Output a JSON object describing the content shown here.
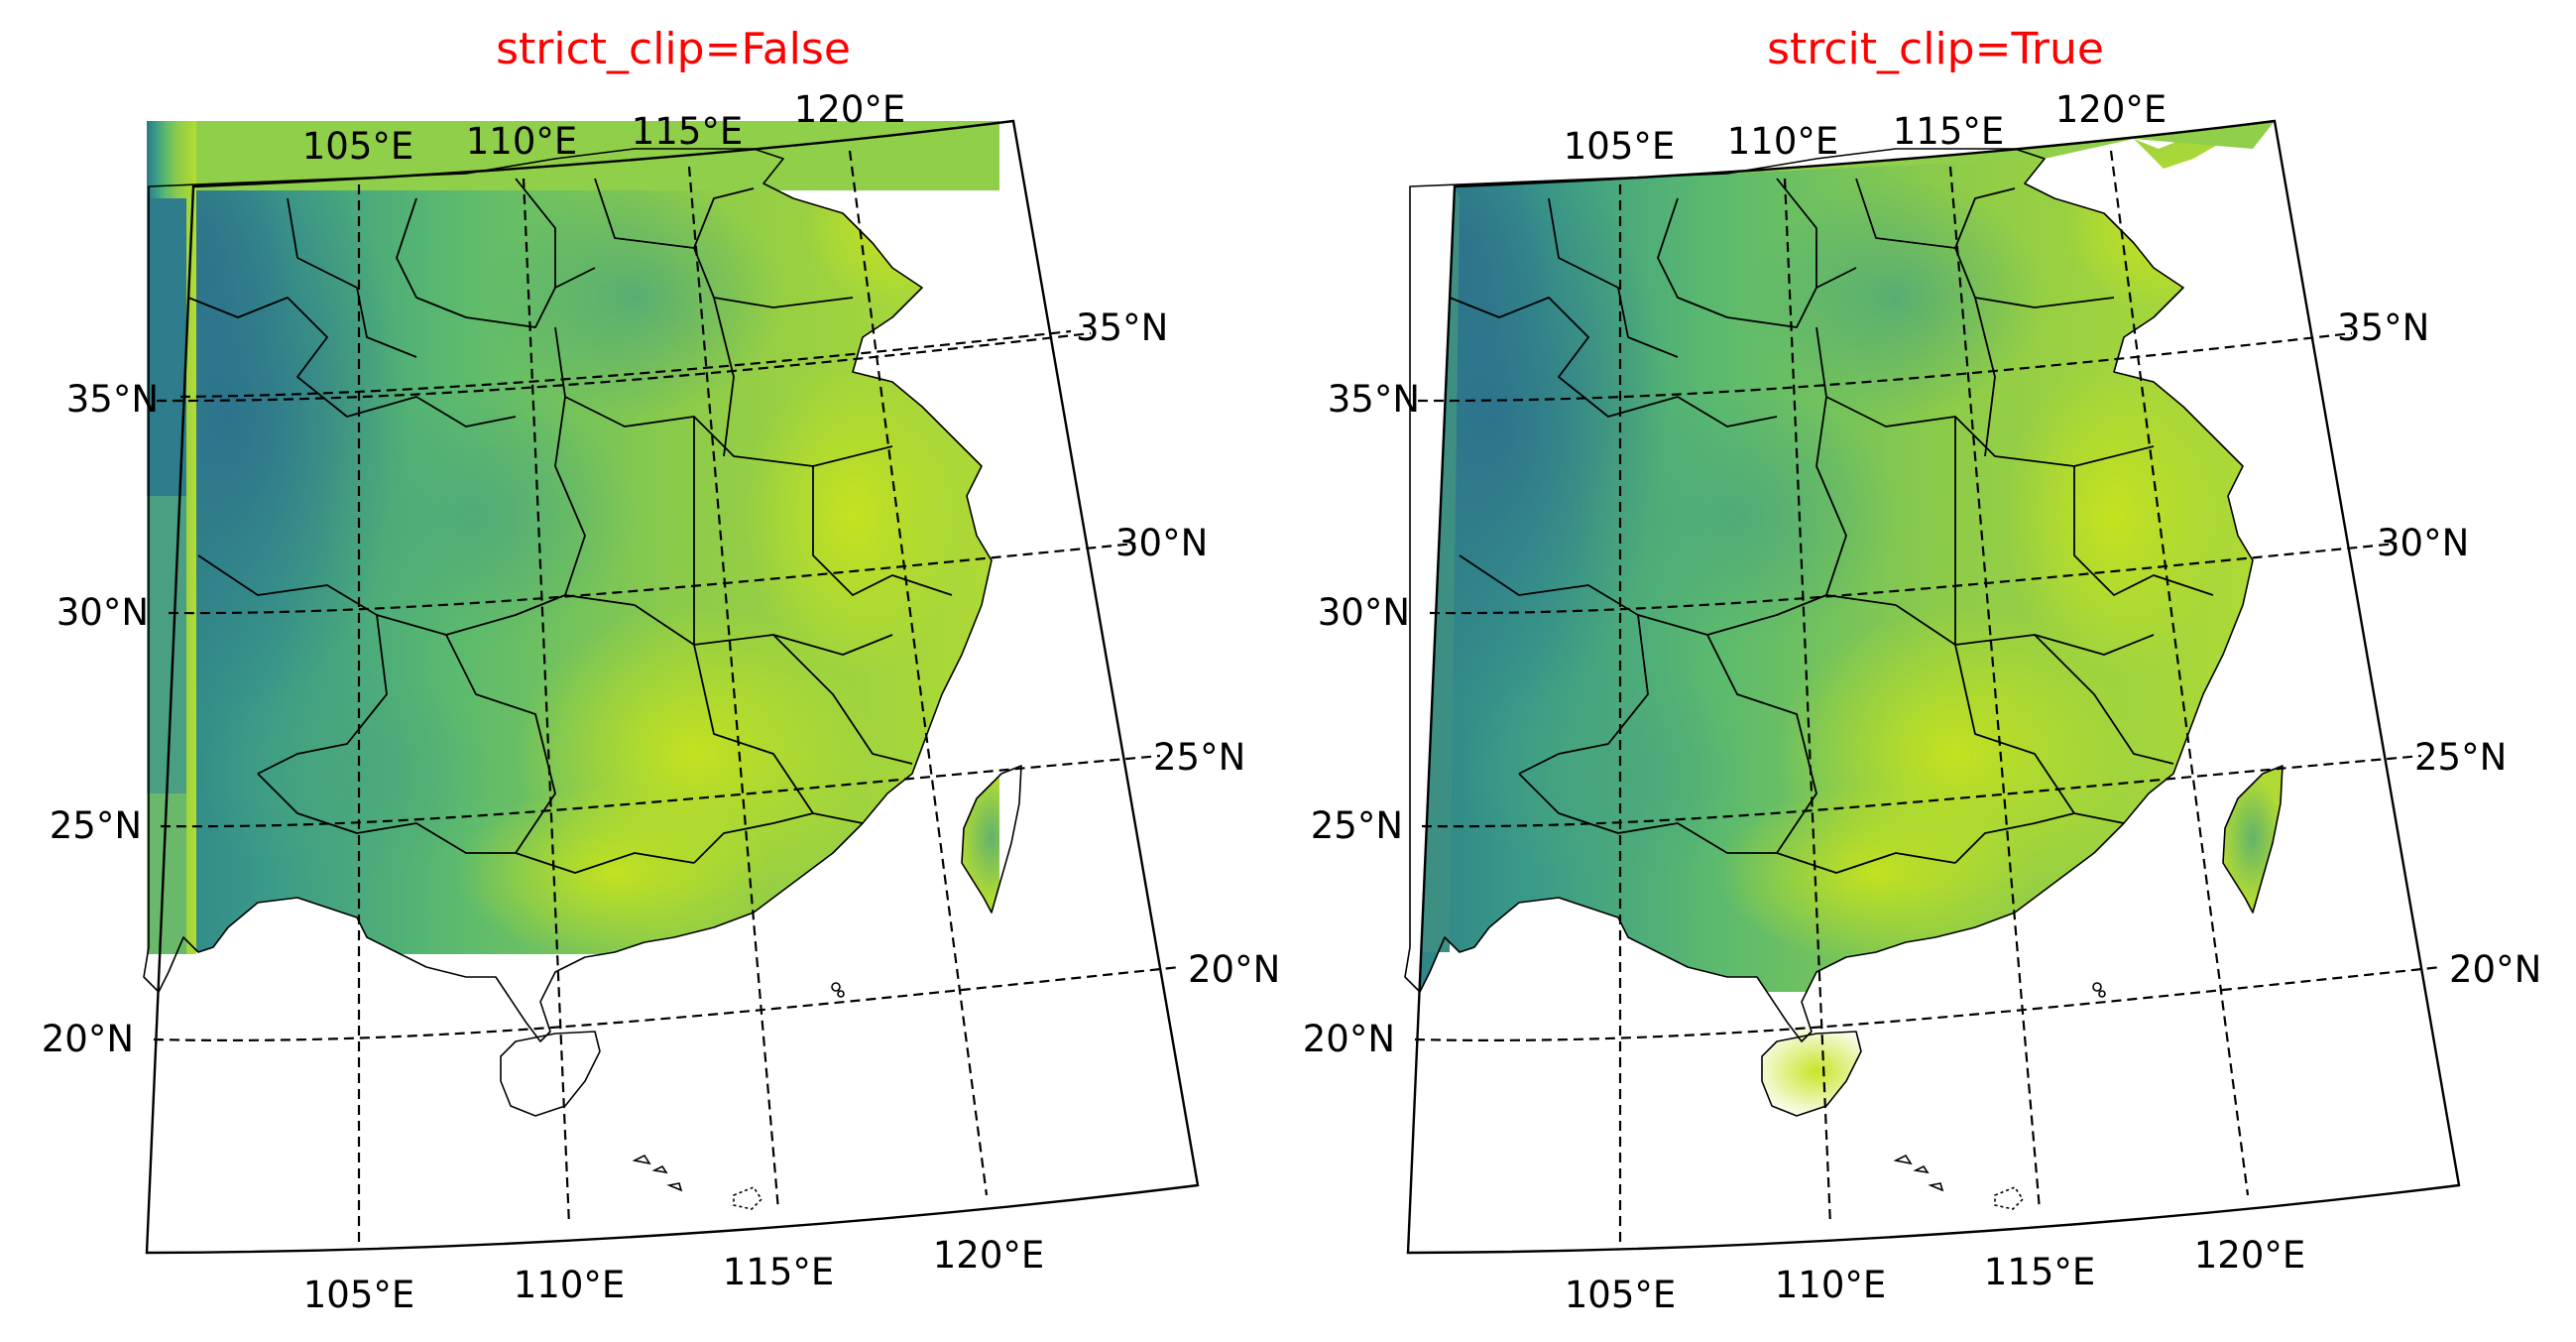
{
  "figure": {
    "panels": [
      {
        "title": "strict_clip=False",
        "lon_labels_top": [
          "105°E",
          "110°E",
          "115°E",
          "120°E"
        ],
        "lon_labels_bottom": [
          "105°E",
          "110°E",
          "115°E",
          "120°E"
        ],
        "lat_labels_left": [
          "35°N",
          "30°N",
          "25°N",
          "20°N"
        ],
        "lat_labels_right": [
          "35°N",
          "30°N",
          "25°N",
          "20°N"
        ]
      },
      {
        "title": "strcit_clip=True",
        "lon_labels_top": [
          "105°E",
          "110°E",
          "115°E",
          "120°E"
        ],
        "lon_labels_bottom": [
          "105°E",
          "110°E",
          "115°E",
          "120°E"
        ],
        "lat_labels_left": [
          "35°N",
          "30°N",
          "25°N",
          "20°N"
        ],
        "lat_labels_right": [
          "35°N",
          "30°N",
          "25°N",
          "20°N"
        ]
      }
    ],
    "colors": {
      "title": "#ff0000",
      "colormap": "viridis",
      "field_low": "#2a7f8a",
      "field_mid": "#48b07a",
      "field_high": "#c0e020",
      "lines": "#000000"
    },
    "gridlines": "dashed"
  }
}
